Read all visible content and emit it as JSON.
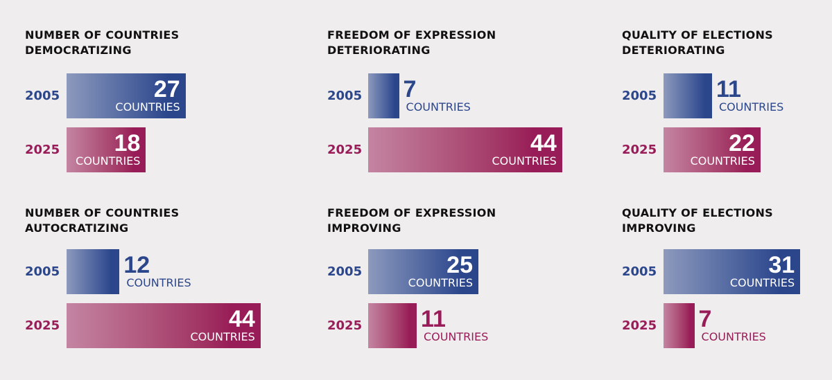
{
  "chart_data": [
    {
      "type": "bar",
      "title": [
        "NUMBER OF COUNTRIES",
        "DEMOCRATIZING"
      ],
      "categories": [
        "2005",
        "2025"
      ],
      "values": [
        27,
        18
      ],
      "unit_label": "COUNTRIES",
      "colors": [
        "#2c468c",
        "#981c57"
      ]
    },
    {
      "type": "bar",
      "title": [
        "FREEDOM OF EXPRESSION",
        "DETERIORATING"
      ],
      "categories": [
        "2005",
        "2025"
      ],
      "values": [
        7,
        44
      ],
      "unit_label": "COUNTRIES",
      "colors": [
        "#2c468c",
        "#981c57"
      ]
    },
    {
      "type": "bar",
      "title": [
        "QUALITY OF ELECTIONS",
        "DETERIORATING"
      ],
      "categories": [
        "2005",
        "2025"
      ],
      "values": [
        11,
        22
      ],
      "unit_label": "COUNTRIES",
      "colors": [
        "#2c468c",
        "#981c57"
      ]
    },
    {
      "type": "bar",
      "title": [
        "NUMBER OF COUNTRIES",
        "AUTOCRATIZING"
      ],
      "categories": [
        "2005",
        "2025"
      ],
      "values": [
        12,
        44
      ],
      "unit_label": "COUNTRIES",
      "colors": [
        "#2c468c",
        "#981c57"
      ]
    },
    {
      "type": "bar",
      "title": [
        "FREEDOM OF EXPRESSION",
        "IMPROVING"
      ],
      "categories": [
        "2005",
        "2025"
      ],
      "values": [
        25,
        11
      ],
      "unit_label": "COUNTRIES",
      "colors": [
        "#2c468c",
        "#981c57"
      ]
    },
    {
      "type": "bar",
      "title": [
        "QUALITY OF ELECTIONS",
        "IMPROVING"
      ],
      "categories": [
        "2005",
        "2025"
      ],
      "values": [
        31,
        7
      ],
      "unit_label": "COUNTRIES",
      "colors": [
        "#2c468c",
        "#981c57"
      ]
    }
  ]
}
